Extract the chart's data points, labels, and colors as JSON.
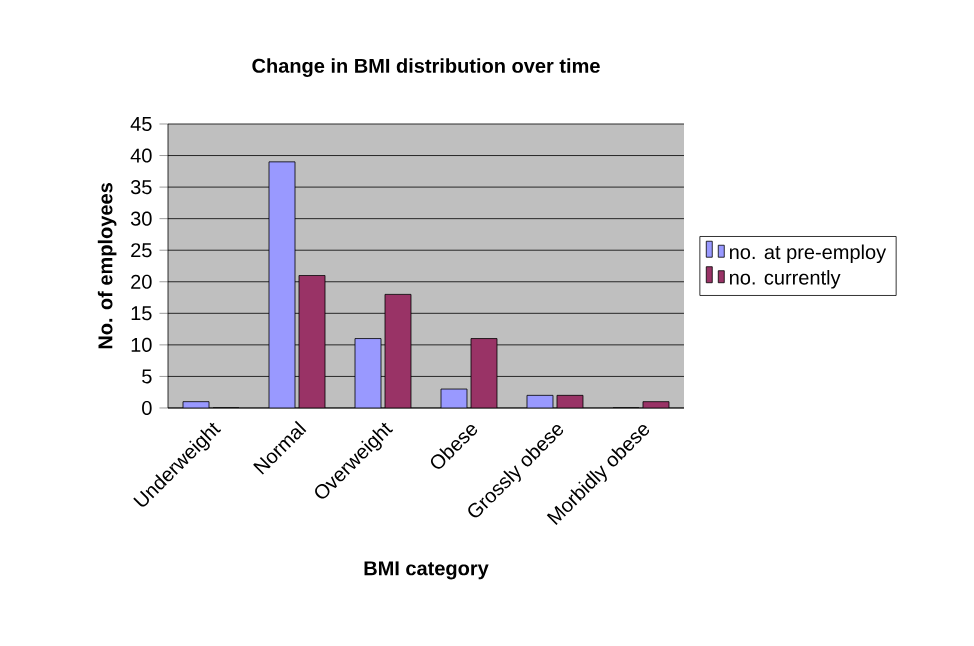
{
  "chart_data": {
    "type": "bar",
    "title": "Change in BMI distribution over time",
    "xlabel": "BMI category",
    "ylabel": "No. of employees",
    "categories": [
      "Underweight",
      "Normal",
      "Overweight",
      "Obese",
      "Grossly obese",
      "Morbidly obese"
    ],
    "series": [
      {
        "name": "no. at pre-employ",
        "color": "#9999ff",
        "values": [
          1,
          39,
          11,
          3,
          2,
          0
        ]
      },
      {
        "name": "no. currently",
        "color": "#993366",
        "values": [
          0,
          21,
          18,
          11,
          2,
          1
        ]
      }
    ],
    "ylim": [
      0,
      45
    ],
    "yticks": [
      0,
      5,
      10,
      15,
      20,
      25,
      30,
      35,
      40,
      45
    ],
    "grid": "y",
    "legend": "right"
  }
}
